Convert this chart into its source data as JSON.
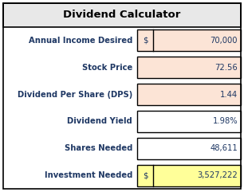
{
  "title": "Dividend Calculator",
  "title_bg": "#e8e8e8",
  "rows": [
    {
      "label": "Annual Income Desired",
      "prefix": "$",
      "value": "70,000",
      "bg": "#fce4d6",
      "has_prefix_box": true
    },
    {
      "label": "Stock Price",
      "prefix": "",
      "value": "72.56",
      "bg": "#fce4d6",
      "has_prefix_box": false
    },
    {
      "label": "Dividend Per Share (DPS)",
      "prefix": "",
      "value": "1.44",
      "bg": "#fce4d6",
      "has_prefix_box": false
    },
    {
      "label": "Dividend Yield",
      "prefix": "",
      "value": "1.98%",
      "bg": "#ffffff",
      "has_prefix_box": false
    },
    {
      "label": "Shares Needed",
      "prefix": "",
      "value": "48,611",
      "bg": "#ffffff",
      "has_prefix_box": false
    },
    {
      "label": "Investment Needed",
      "prefix": "$",
      "value": "3,527,222",
      "bg": "#ffff99",
      "has_prefix_box": true
    }
  ],
  "label_color": "#1f3864",
  "value_color": "#1f3864",
  "border_color": "#000000",
  "title_text_color": "#000000",
  "fig_bg": "#ffffff",
  "fig_width": 3.06,
  "fig_height": 2.41,
  "dpi": 100
}
